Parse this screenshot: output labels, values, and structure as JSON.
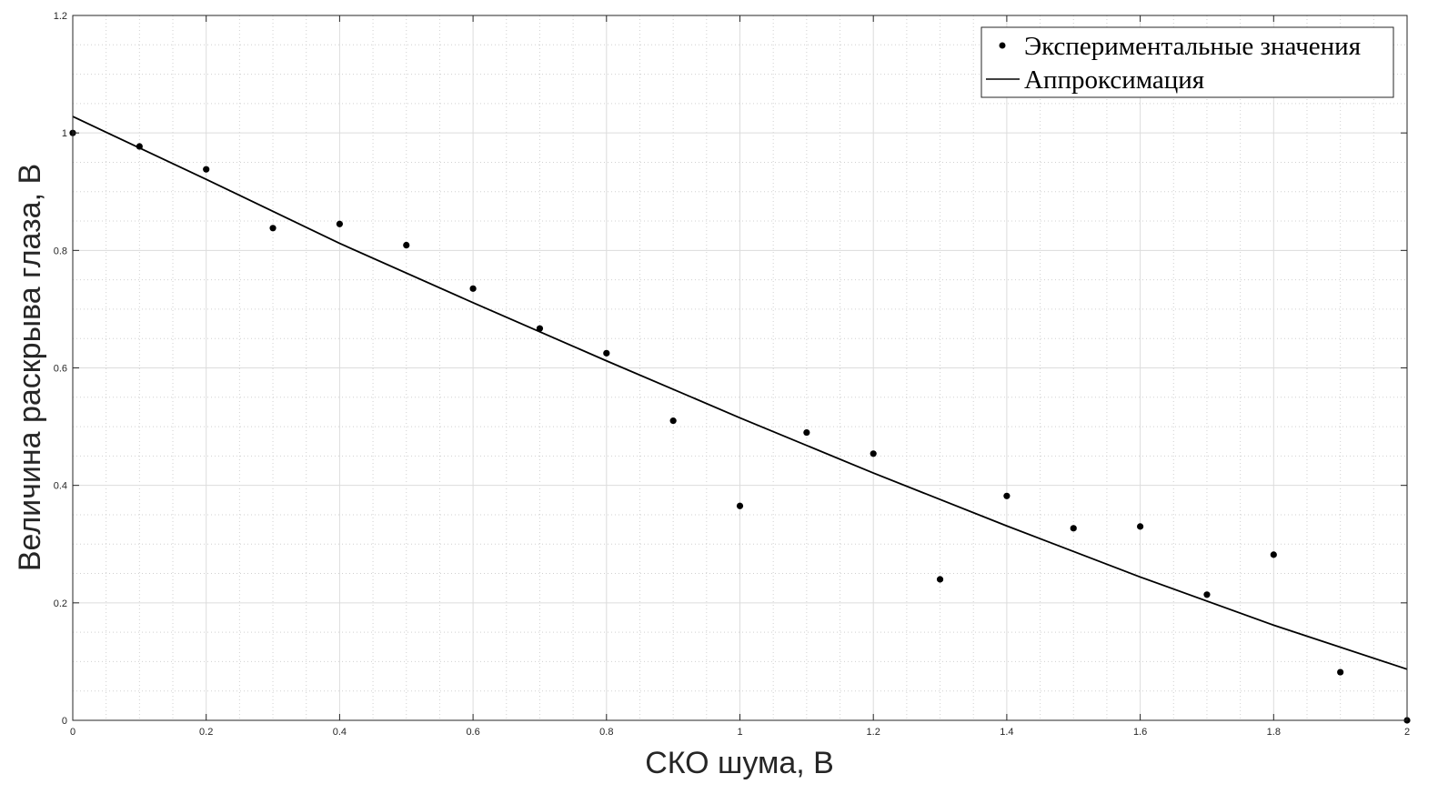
{
  "chart_data": {
    "type": "scatter",
    "xlabel": "СКО шума, В",
    "ylabel": "Величина раскрыва глаза, В",
    "xlim": [
      0,
      2
    ],
    "ylim": [
      0,
      1.2
    ],
    "x_ticks": [
      0,
      0.2,
      0.4,
      0.6,
      0.8,
      1,
      1.2,
      1.4,
      1.6,
      1.8,
      2
    ],
    "x_tick_labels": [
      "0",
      "0.2",
      "0.4",
      "0.6",
      "0.8",
      "1",
      "1.2",
      "1.4",
      "1.6",
      "1.8",
      "2"
    ],
    "y_ticks": [
      0,
      0.2,
      0.4,
      0.6,
      0.8,
      1,
      1.2
    ],
    "y_tick_labels": [
      "0",
      "0.2",
      "0.4",
      "0.6",
      "0.8",
      "1",
      "1.2"
    ],
    "grid": true,
    "minor_grid": true,
    "legend_position": "top-right",
    "series": [
      {
        "name": "Экспериментальные значения",
        "kind": "markers",
        "color": "#000000",
        "x": [
          0,
          0.1,
          0.2,
          0.3,
          0.4,
          0.5,
          0.6,
          0.7,
          0.8,
          0.9,
          1.0,
          1.1,
          1.2,
          1.3,
          1.4,
          1.5,
          1.6,
          1.7,
          1.8,
          1.9,
          2.0
        ],
        "y": [
          1.0,
          0.977,
          0.938,
          0.838,
          0.845,
          0.809,
          0.735,
          0.667,
          0.625,
          0.51,
          0.365,
          0.49,
          0.454,
          0.24,
          0.382,
          0.327,
          0.33,
          0.214,
          0.282,
          0.082,
          0.0
        ]
      },
      {
        "name": "Аппроксимация",
        "kind": "line",
        "color": "#000000",
        "x": [
          0,
          0.2,
          0.4,
          0.6,
          0.8,
          1.0,
          1.2,
          1.4,
          1.6,
          1.8,
          2.0
        ],
        "y": [
          1.028,
          0.921,
          0.812,
          0.711,
          0.612,
          0.515,
          0.421,
          0.331,
          0.244,
          0.162,
          0.087
        ]
      }
    ]
  }
}
